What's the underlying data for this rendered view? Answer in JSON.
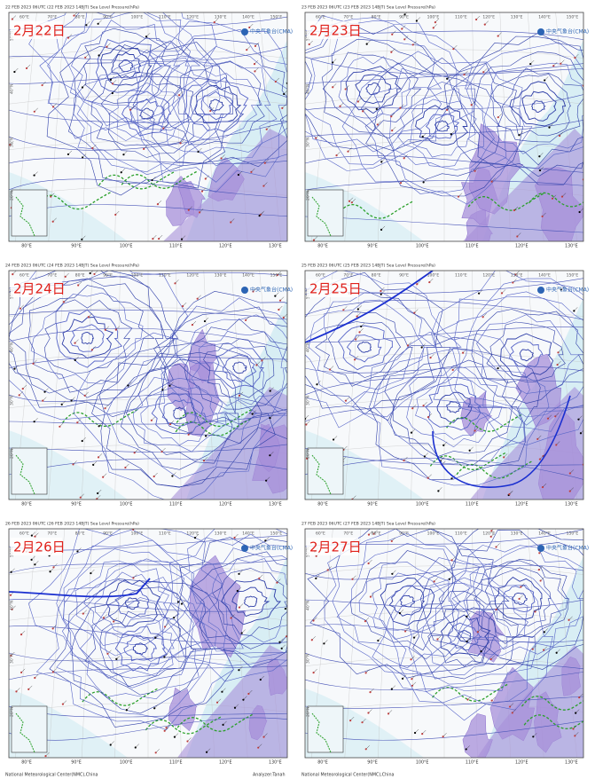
{
  "panels": [
    {
      "header": "22 FEB 2023 06UTC (22 FEB 2023 14BJT) Sea Level Pressure(hPa)",
      "date": "2月22日"
    },
    {
      "header": "23 FEB 2023 06UTC (23 FEB 2023 14BJT) Sea Level Pressure(hPa)",
      "date": "2月23日"
    },
    {
      "header": "24 FEB 2023 06UTC (24 FEB 2023 14BJT) Sea Level Pressure(hPa)",
      "date": "2月24日"
    },
    {
      "header": "25 FEB 2023 06UTC (25 FEB 2023 14BJT) Sea Level Pressure(hPa)",
      "date": "2月25日"
    },
    {
      "header": "26 FEB 2023 06UTC (26 FEB 2023 14BJT) Sea Level Pressure(hPa)",
      "date": "2月26日"
    },
    {
      "header": "27 FEB 2023 06UTC (27 FEB 2023 14BJT) Sea Level Pressure(hPa)",
      "date": "2月27日"
    }
  ],
  "logo": "中央气象台(CMA)",
  "top_lon_labels": [
    "60°E",
    "70°E",
    "80°E",
    "90°E",
    "100°E",
    "110°E",
    "120°E",
    "130°E",
    "140°E",
    "150°E"
  ],
  "bottom_lon_labels": [
    "80°E",
    "90°E",
    "100°E",
    "110°E",
    "120°E",
    "130°E"
  ],
  "lat_labels": [
    "50°N",
    "40°N",
    "30°N",
    "20°N"
  ],
  "footer": "National Meteorological Center(NMC),China",
  "analyzer": "Analyzer:Tanah"
}
